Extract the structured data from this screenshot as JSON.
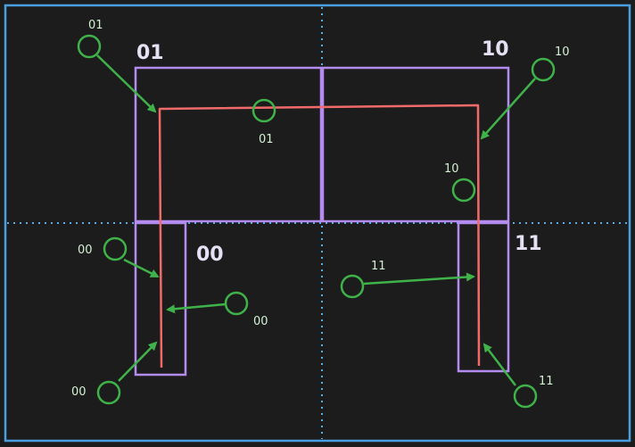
{
  "colors": {
    "background": "#1c1c1c",
    "frame": "#4a9fe0",
    "divider": "#5aaee8",
    "outline": "#b48cf0",
    "curve": "#f06a6a",
    "marker": "#3fb24a",
    "label_light": "#e6e0f5",
    "label_green": "#d4f0d4"
  },
  "diagram": {
    "quadrant_labels": [
      "01",
      "10",
      "00",
      "11"
    ],
    "marker_labels": [
      "01",
      "10",
      "01",
      "10",
      "00",
      "00",
      "11",
      "00",
      "11"
    ]
  }
}
